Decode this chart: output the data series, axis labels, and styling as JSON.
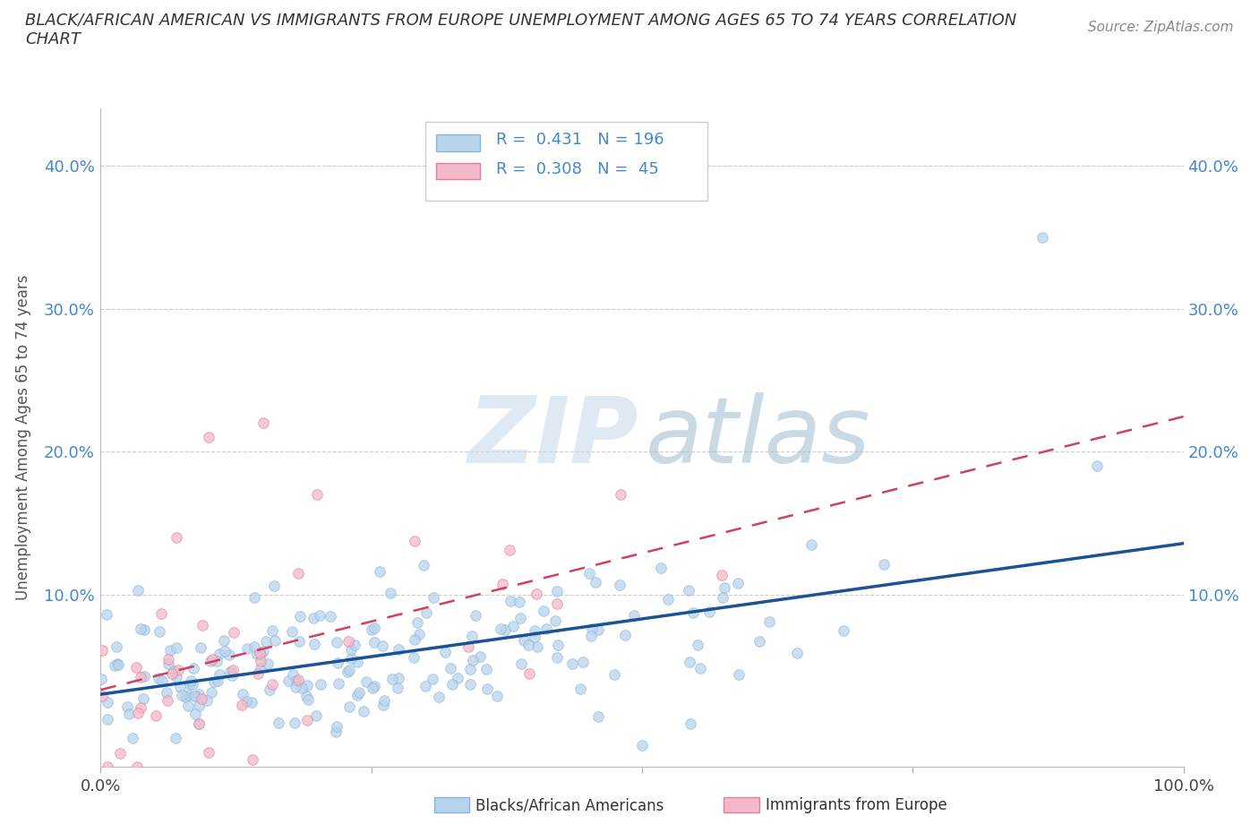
{
  "title": "BLACK/AFRICAN AMERICAN VS IMMIGRANTS FROM EUROPE UNEMPLOYMENT AMONG AGES 65 TO 74 YEARS CORRELATION\nCHART",
  "source": "Source: ZipAtlas.com",
  "ylabel": "Unemployment Among Ages 65 to 74 years",
  "xlim": [
    0.0,
    1.0
  ],
  "ylim": [
    -0.02,
    0.44
  ],
  "yticks": [
    0.0,
    0.1,
    0.2,
    0.3,
    0.4
  ],
  "ytick_labels": [
    "",
    "10.0%",
    "20.0%",
    "30.0%",
    "40.0%"
  ],
  "xticks": [
    0.0,
    0.25,
    0.5,
    0.75,
    1.0
  ],
  "xtick_labels": [
    "0.0%",
    "",
    "",
    "",
    "100.0%"
  ],
  "blue_R": 0.431,
  "blue_N": 196,
  "pink_R": 0.308,
  "pink_N": 45,
  "blue_scatter_color": "#b8d4ed",
  "blue_edge_color": "#8ab4d8",
  "blue_line_color": "#1a5296",
  "pink_scatter_color": "#f5b8c8",
  "pink_edge_color": "#e08098",
  "pink_line_color": "#d04060",
  "grid_color": "#cccccc",
  "background_color": "#ffffff",
  "title_color": "#333333",
  "label_color": "#4488cc",
  "source_text": "Source: ZipAtlas.com"
}
